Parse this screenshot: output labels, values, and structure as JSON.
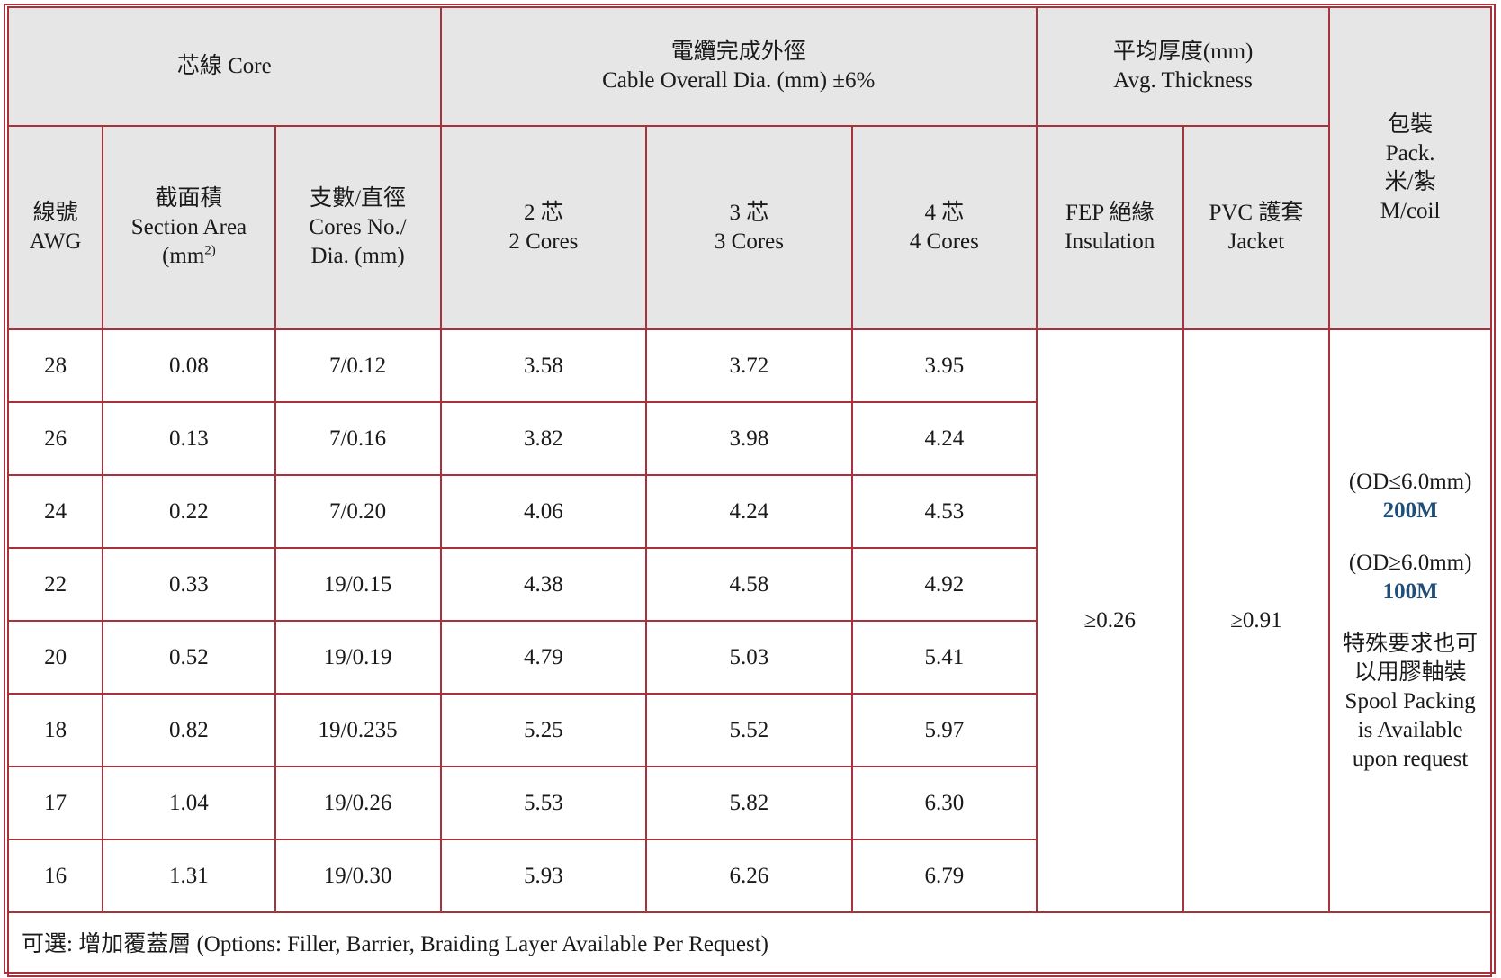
{
  "header": {
    "core_group": "芯線 Core",
    "cable_od_group": [
      "電纜完成外徑",
      "Cable Overall Dia. (mm) ±6%"
    ],
    "thickness_group": [
      "平均厚度(mm)",
      "Avg. Thickness"
    ],
    "pack": [
      "包裝",
      "Pack.",
      "米/紮",
      "M/coil"
    ],
    "awg": [
      "線號",
      "AWG"
    ],
    "section_area": [
      "截面積",
      "Section Area"
    ],
    "section_unit_base": "(mm",
    "section_unit_sup": "2)",
    "cores_dia": [
      "支數/直徑",
      "Cores No./",
      "Dia. (mm)"
    ],
    "cores2": [
      "2 芯",
      "2 Cores"
    ],
    "cores3": [
      "3 芯",
      "3 Cores"
    ],
    "cores4": [
      "4 芯",
      "4 Cores"
    ],
    "fep": [
      "FEP 絕緣",
      "Insulation"
    ],
    "pvc": [
      "PVC 護套",
      "Jacket"
    ]
  },
  "rows": [
    {
      "awg": "28",
      "area": "0.08",
      "cores": "7/0.12",
      "od2": "3.58",
      "od3": "3.72",
      "od4": "3.95"
    },
    {
      "awg": "26",
      "area": "0.13",
      "cores": "7/0.16",
      "od2": "3.82",
      "od3": "3.98",
      "od4": "4.24"
    },
    {
      "awg": "24",
      "area": "0.22",
      "cores": "7/0.20",
      "od2": "4.06",
      "od3": "4.24",
      "od4": "4.53"
    },
    {
      "awg": "22",
      "area": "0.33",
      "cores": "19/0.15",
      "od2": "4.38",
      "od3": "4.58",
      "od4": "4.92"
    },
    {
      "awg": "20",
      "area": "0.52",
      "cores": "19/0.19",
      "od2": "4.79",
      "od3": "5.03",
      "od4": "5.41"
    },
    {
      "awg": "18",
      "area": "0.82",
      "cores": "19/0.235",
      "od2": "5.25",
      "od3": "5.52",
      "od4": "5.97"
    },
    {
      "awg": "17",
      "area": "1.04",
      "cores": "19/0.26",
      "od2": "5.53",
      "od3": "5.82",
      "od4": "6.30"
    },
    {
      "awg": "16",
      "area": "1.31",
      "cores": "19/0.30",
      "od2": "5.93",
      "od3": "6.26",
      "od4": "6.79"
    }
  ],
  "fep_value": "≥0.26",
  "pvc_value": "≥0.91",
  "pack_info": {
    "small_od": "(OD≤6.0mm)",
    "small_len": "200M",
    "large_od": "(OD≥6.0mm)",
    "large_len": "100M",
    "spool": [
      "特殊要求也可",
      "以用膠軸裝",
      "Spool Packing",
      "is Available",
      "upon request"
    ]
  },
  "footer_note": "可選:  增加覆蓋層  (Options: Filler, Barrier, Braiding Layer Available Per Request)",
  "colors": {
    "border": "#a8323c",
    "header_bg": "#e6e6e6",
    "highlight": "#1f4e79"
  }
}
